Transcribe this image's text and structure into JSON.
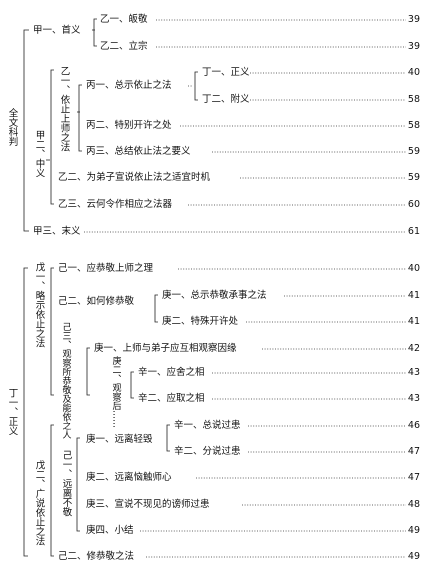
{
  "section1": {
    "root": "全文科判",
    "jia1": "甲一、首义",
    "yi1": "乙一、皈敬",
    "yi1_page": "39",
    "yi2": "乙二、立宗",
    "yi2_page": "39",
    "jia2": "甲二、中义",
    "yi_a": "乙一、依止上师之法",
    "bing1": "丙一、总示依止之法",
    "ding1": "丁一、正义",
    "ding1_page": "40",
    "ding2": "丁二、附义",
    "ding2_page": "58",
    "bing2": "丙二、特别开许之处",
    "bing2_page": "58",
    "bing3": "丙三、总结依止法之要义",
    "bing3_page": "59",
    "yi_b": "乙二、为弟子宣说依止法之适宜时机",
    "yi_b_page": "59",
    "yi_c": "乙三、云何令作相应之法器",
    "yi_c_page": "60",
    "jia3": "甲三、末义",
    "jia3_page": "61"
  },
  "section2": {
    "root": "丁一、正义",
    "wu1": "戊一、略示依止之法",
    "ji1": "己一、应恭敬上师之理",
    "ji1_page": "40",
    "ji2": "己二、如何修恭敬",
    "geng1": "庚一、总示恭敬承事之法",
    "geng1_page": "41",
    "geng2": "庚二、特殊开许处",
    "geng2_page": "41",
    "ji3": "己三、观察所恭敬及能依之人",
    "geng_a": "庚一、上师与弟子应互相观察因缘",
    "geng_a_page": "42",
    "geng_b": "庚二、观察后……",
    "xin1": "辛一、应舍之相",
    "xin1_page": "43",
    "xin2": "辛二、应取之相",
    "xin2_page": "43",
    "wu2": "戊二、广说依止之法",
    "ji_a": "己一、远离不敬",
    "geng_c": "庚一、远离轻毁",
    "xin_a": "辛一、总说过患",
    "xin_a_page": "46",
    "xin_b": "辛二、分说过患",
    "xin_b_page": "47",
    "geng_d": "庚二、远离恼触师心",
    "geng_d_page": "47",
    "geng_e": "庚三、宣说不现见的谤师过患",
    "geng_e_page": "48",
    "geng_f": "庚四、小结",
    "geng_f_page": "49",
    "ji_b": "己二、修恭敬之法",
    "ji_b_page": "49"
  }
}
